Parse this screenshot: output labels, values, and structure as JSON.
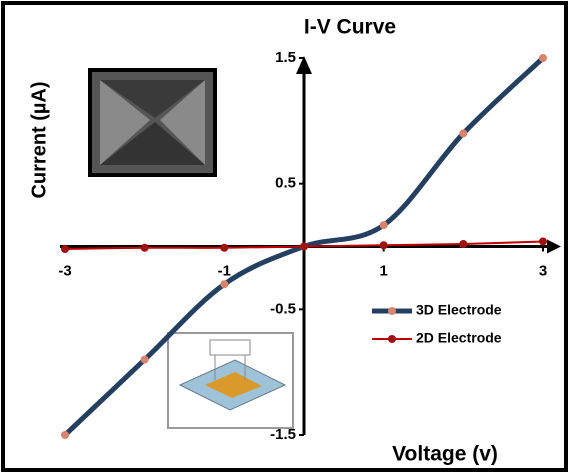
{
  "chart_data": {
    "type": "line",
    "title": "I-V Curve",
    "x_label": "Voltage (v)",
    "y_label": "Current (µA)",
    "x": [
      -3,
      -2,
      -1,
      0,
      1,
      2,
      3
    ],
    "series": [
      {
        "name": "3D Electrode",
        "color": "#243f60",
        "marker_color": "#d9826c",
        "values": [
          -1.5,
          -0.9,
          -0.3,
          0,
          0.17,
          0.9,
          1.5
        ]
      },
      {
        "name": "2D Electrode",
        "color": "#c00000",
        "marker_color": "#a01010",
        "values": [
          -0.02,
          -0.01,
          -0.01,
          0,
          0.01,
          0.02,
          0.04
        ]
      }
    ],
    "xlim": [
      -3,
      3
    ],
    "xticks": [
      -3,
      -1,
      1,
      3
    ],
    "ylim": [
      -1.5,
      1.5
    ],
    "yticks": [
      1.5,
      0.5,
      -0.5,
      -1.5
    ]
  }
}
